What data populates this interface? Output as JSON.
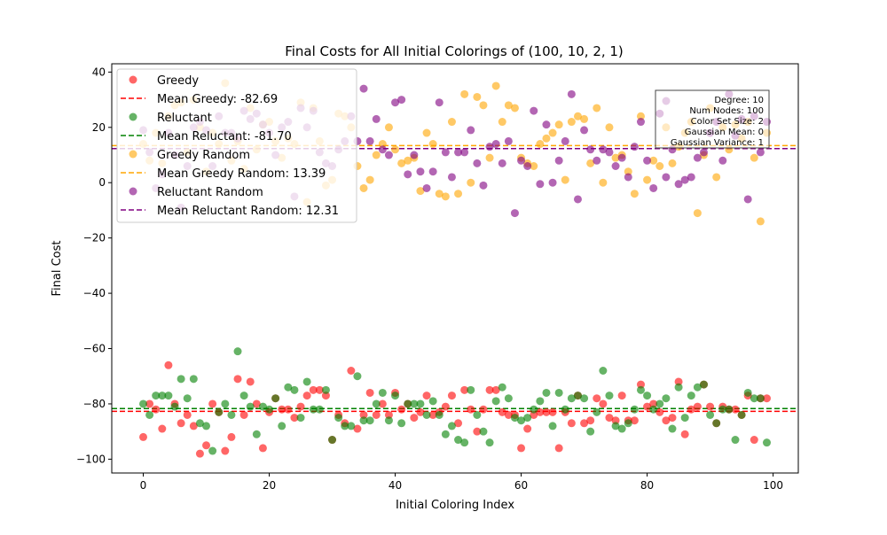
{
  "chart_data": {
    "type": "scatter",
    "title": "Final Costs for All Initial Colorings of (100, 10, 2, 1)",
    "xlabel": "Initial Coloring Index",
    "ylabel": "Final Cost",
    "xlim": [
      -5,
      104
    ],
    "ylim": [
      -105,
      43
    ],
    "xticks": [
      0,
      20,
      40,
      60,
      80,
      100
    ],
    "yticks": [
      -100,
      -80,
      -60,
      -40,
      -20,
      0,
      20,
      40
    ],
    "grid": false,
    "legend_position": "upper-left",
    "series": [
      {
        "name": "Greedy",
        "color": "#ff0000",
        "mean": -82.69,
        "mean_label": "Mean Greedy: -82.69",
        "values": [
          -92,
          -80,
          -82,
          -89,
          -66,
          -80,
          -87,
          -84,
          -88,
          -98,
          -95,
          -80,
          -83,
          -97,
          -92,
          -71,
          -84,
          -72,
          -80,
          -96,
          -83,
          -78,
          -82,
          -82,
          -85,
          -81,
          -77,
          -75,
          -75,
          -77,
          -93,
          -84,
          -87,
          -68,
          -89,
          -84,
          -76,
          -84,
          -80,
          -84,
          -76,
          -82,
          -80,
          -85,
          -83,
          -77,
          -84,
          -83,
          -81,
          -77,
          -87,
          -75,
          -82,
          -90,
          -82,
          -75,
          -75,
          -83,
          -84,
          -84,
          -96,
          -89,
          -84,
          -83,
          -83,
          -83,
          -96,
          -83,
          -87,
          -77,
          -87,
          -86,
          -78,
          -80,
          -85,
          -86,
          -77,
          -86,
          -86,
          -73,
          -81,
          -80,
          -83,
          -86,
          -85,
          -72,
          -91,
          -82,
          -81,
          -73,
          -81,
          -87,
          -81,
          -82,
          -82,
          -84,
          -77,
          -93,
          -78,
          -78
        ]
      },
      {
        "name": "Reluctant",
        "color": "#008000",
        "mean": -81.7,
        "mean_label": "Mean Reluctant: -81.70",
        "values": [
          -80,
          -84,
          -77,
          -77,
          -77,
          -81,
          -71,
          -78,
          -71,
          -87,
          -88,
          -97,
          -83,
          -80,
          -84,
          -61,
          -77,
          -81,
          -91,
          -81,
          -82,
          -78,
          -88,
          -74,
          -75,
          -85,
          -72,
          -82,
          -82,
          -75,
          -93,
          -85,
          -88,
          -88,
          -70,
          -86,
          -86,
          -80,
          -76,
          -86,
          -77,
          -87,
          -80,
          -80,
          -80,
          -84,
          -79,
          -84,
          -91,
          -88,
          -93,
          -94,
          -75,
          -84,
          -90,
          -94,
          -79,
          -74,
          -78,
          -85,
          -86,
          -85,
          -82,
          -79,
          -76,
          -88,
          -76,
          -82,
          -78,
          -77,
          -78,
          -90,
          -83,
          -68,
          -77,
          -88,
          -89,
          -87,
          -82,
          -75,
          -77,
          -82,
          -80,
          -78,
          -89,
          -74,
          -85,
          -77,
          -74,
          -73,
          -84,
          -87,
          -82,
          -82,
          -93,
          -84,
          -76,
          -78,
          -78,
          -94
        ]
      },
      {
        "name": "Greedy Random",
        "color": "#ffa500",
        "mean": 13.39,
        "mean_label": "Mean Greedy Random: 13.39",
        "values": [
          14,
          8,
          18,
          7,
          24,
          28,
          29,
          11,
          30,
          20,
          4,
          18,
          14,
          36,
          8,
          15,
          5,
          27,
          12,
          21,
          22,
          15,
          9,
          16,
          14,
          29,
          -7,
          27,
          15,
          -1,
          1,
          25,
          24,
          20,
          6,
          -2,
          1,
          10,
          14,
          20,
          12,
          7,
          8,
          9,
          -3,
          18,
          14,
          -4,
          -5,
          22,
          -4,
          32,
          0,
          31,
          28,
          9,
          35,
          22,
          28,
          27,
          9,
          7,
          6,
          14,
          16,
          18,
          21,
          1,
          22,
          24,
          23,
          7,
          27,
          0,
          20,
          9,
          10,
          4,
          -4,
          24,
          1,
          8,
          6,
          20,
          7,
          13,
          18,
          22,
          -11,
          10,
          27,
          2,
          20,
          12,
          21,
          16,
          22,
          9,
          -14,
          18
        ]
      },
      {
        "name": "Reluctant Random",
        "color": "#800080",
        "mean": 12.31,
        "mean_label": "Mean Reluctant Random: 12.31",
        "values": [
          19,
          11,
          -2,
          3,
          18,
          10,
          -9,
          6,
          20,
          22,
          19,
          6,
          24,
          18,
          18,
          16,
          26,
          23,
          25,
          21,
          18,
          10,
          20,
          22,
          -5,
          27,
          20,
          26,
          11,
          7,
          6,
          12,
          15,
          24,
          15,
          34,
          15,
          23,
          12,
          10,
          29,
          30,
          3,
          10,
          4,
          -2,
          4,
          29,
          11,
          2,
          11,
          11,
          19,
          7,
          -1,
          13,
          14,
          7,
          15,
          -11,
          8,
          6,
          26,
          -0.5,
          21,
          0,
          8,
          15,
          32,
          -6,
          19,
          12,
          8,
          12,
          11,
          6,
          9,
          2,
          13,
          22,
          8,
          -2,
          25,
          2,
          12,
          -0.5,
          1,
          2,
          9,
          11,
          18,
          22,
          8,
          32,
          17,
          23,
          -6,
          24,
          11,
          22
        ]
      }
    ],
    "annotation_lines": [
      "Degree: 10",
      "Num Nodes: 100",
      "Color Set Size: 2",
      "Gaussian Mean: 0",
      "Gaussian Variance: 1"
    ]
  }
}
